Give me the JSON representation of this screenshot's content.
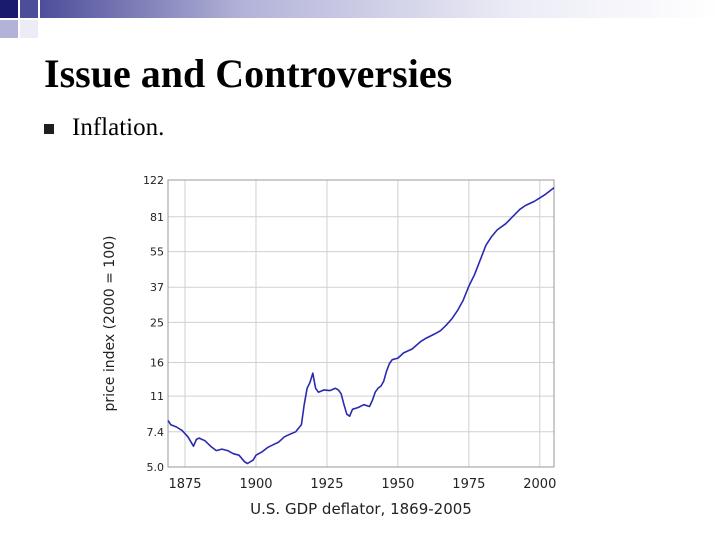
{
  "slide": {
    "title": "Issue and Controversies",
    "bullets": [
      {
        "text": "Inflation.",
        "icon": "square-bullet-icon"
      }
    ]
  },
  "theme": {
    "deco_colors": [
      "#1a1a6e",
      "#4d4d9a",
      "#b3b3d9",
      "#ececf6"
    ],
    "series_color": "#2a2ab0"
  },
  "chart_data": {
    "type": "line",
    "title": "",
    "xlabel": "U.S. GDP deflator, 1869-2005",
    "ylabel": "price index (2000 = 100)",
    "yscale": "log",
    "xlim": [
      1869,
      2005
    ],
    "ylim": [
      5.0,
      122
    ],
    "x_ticks": [
      "1875",
      "1900",
      "1925",
      "1950",
      "1975",
      "2000"
    ],
    "y_ticks": [
      "5.0",
      "7.4",
      "11",
      "16",
      "25",
      "37",
      "55",
      "81",
      "122"
    ],
    "grid": true,
    "series": [
      {
        "name": "GDP deflator",
        "x": [
          1869,
          1870,
          1872,
          1874,
          1876,
          1878,
          1879,
          1880,
          1882,
          1884,
          1886,
          1888,
          1890,
          1892,
          1894,
          1896,
          1897,
          1899,
          1900,
          1902,
          1904,
          1906,
          1908,
          1910,
          1912,
          1914,
          1916,
          1917,
          1918,
          1919,
          1920,
          1921,
          1922,
          1924,
          1926,
          1928,
          1929,
          1930,
          1931,
          1932,
          1933,
          1934,
          1936,
          1938,
          1940,
          1941,
          1942,
          1943,
          1944,
          1945,
          1946,
          1947,
          1948,
          1950,
          1952,
          1955,
          1958,
          1960,
          1963,
          1965,
          1967,
          1969,
          1971,
          1973,
          1975,
          1977,
          1979,
          1981,
          1983,
          1985,
          1988,
          1990,
          1993,
          1995,
          1998,
          2000,
          2002,
          2005
        ],
        "values": [
          8.4,
          8.0,
          7.8,
          7.5,
          7.0,
          6.3,
          6.8,
          6.9,
          6.7,
          6.3,
          6.0,
          6.1,
          6.0,
          5.8,
          5.7,
          5.3,
          5.2,
          5.4,
          5.7,
          5.9,
          6.2,
          6.4,
          6.6,
          7.0,
          7.2,
          7.4,
          8.0,
          10.0,
          12.0,
          12.8,
          14.2,
          12.0,
          11.5,
          11.8,
          11.7,
          12.0,
          11.8,
          11.3,
          10.0,
          9.0,
          8.8,
          9.5,
          9.7,
          10.0,
          9.8,
          10.5,
          11.5,
          12.0,
          12.3,
          13.0,
          14.5,
          15.8,
          16.5,
          16.8,
          17.8,
          18.6,
          20.2,
          21.0,
          22.0,
          22.8,
          24.2,
          26.0,
          28.5,
          32.0,
          37.5,
          42.5,
          50.0,
          59.0,
          65.0,
          70.0,
          75.0,
          80.0,
          88.0,
          92.0,
          96.0,
          100.0,
          104.0,
          112.0
        ]
      }
    ]
  }
}
